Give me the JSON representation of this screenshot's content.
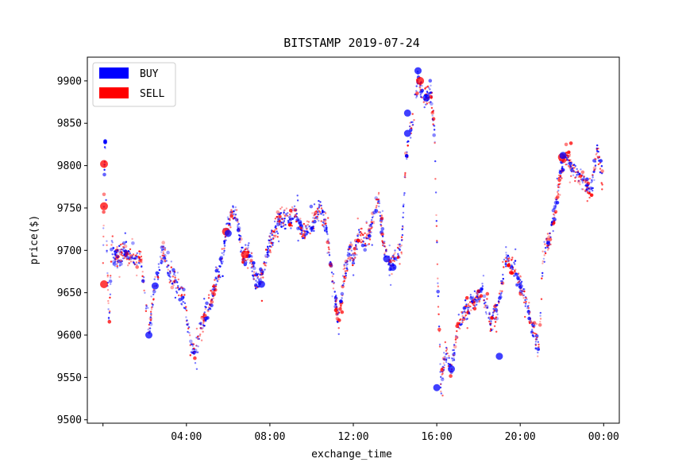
{
  "chart_data": {
    "type": "scatter",
    "title": "BITSTAMP 2019-07-24",
    "xlabel": "exchange_time",
    "ylabel": "price($)",
    "xlim": [
      -0.75,
      24.75
    ],
    "ylim": [
      9496,
      9928
    ],
    "x_ticks": [
      {
        "x": 0,
        "label": ""
      },
      {
        "x": 4,
        "label": "04:00"
      },
      {
        "x": 8,
        "label": "08:00"
      },
      {
        "x": 12,
        "label": "12:00"
      },
      {
        "x": 16,
        "label": "16:00"
      },
      {
        "x": 20,
        "label": "20:00"
      },
      {
        "x": 24,
        "label": "00:00"
      }
    ],
    "y_ticks": [
      9500,
      9550,
      9600,
      9650,
      9700,
      9750,
      9800,
      9850,
      9900
    ],
    "grid": false,
    "legend_position": "top-left",
    "series": [
      {
        "name": "BUY",
        "color": "#0000ff"
      },
      {
        "name": "SELL",
        "color": "#ff0000"
      }
    ],
    "price_path": [
      {
        "x": 0.0,
        "y": 9690
      },
      {
        "x": 0.05,
        "y": 9760
      },
      {
        "x": 0.1,
        "y": 9840
      },
      {
        "x": 0.2,
        "y": 9680
      },
      {
        "x": 0.3,
        "y": 9615
      },
      {
        "x": 0.4,
        "y": 9700
      },
      {
        "x": 0.6,
        "y": 9690
      },
      {
        "x": 1.0,
        "y": 9700
      },
      {
        "x": 1.5,
        "y": 9690
      },
      {
        "x": 1.8,
        "y": 9690
      },
      {
        "x": 2.0,
        "y": 9650
      },
      {
        "x": 2.2,
        "y": 9600
      },
      {
        "x": 2.5,
        "y": 9660
      },
      {
        "x": 2.9,
        "y": 9700
      },
      {
        "x": 3.2,
        "y": 9670
      },
      {
        "x": 3.6,
        "y": 9660
      },
      {
        "x": 3.9,
        "y": 9640
      },
      {
        "x": 4.2,
        "y": 9590
      },
      {
        "x": 4.4,
        "y": 9575
      },
      {
        "x": 4.7,
        "y": 9610
      },
      {
        "x": 5.0,
        "y": 9630
      },
      {
        "x": 5.4,
        "y": 9660
      },
      {
        "x": 5.7,
        "y": 9690
      },
      {
        "x": 5.9,
        "y": 9720
      },
      {
        "x": 6.1,
        "y": 9740
      },
      {
        "x": 6.4,
        "y": 9740
      },
      {
        "x": 6.7,
        "y": 9690
      },
      {
        "x": 7.0,
        "y": 9700
      },
      {
        "x": 7.3,
        "y": 9665
      },
      {
        "x": 7.6,
        "y": 9665
      },
      {
        "x": 7.9,
        "y": 9700
      },
      {
        "x": 8.2,
        "y": 9720
      },
      {
        "x": 8.5,
        "y": 9740
      },
      {
        "x": 8.9,
        "y": 9735
      },
      {
        "x": 9.2,
        "y": 9745
      },
      {
        "x": 9.6,
        "y": 9720
      },
      {
        "x": 10.0,
        "y": 9730
      },
      {
        "x": 10.4,
        "y": 9750
      },
      {
        "x": 10.7,
        "y": 9730
      },
      {
        "x": 11.0,
        "y": 9670
      },
      {
        "x": 11.3,
        "y": 9610
      },
      {
        "x": 11.5,
        "y": 9660
      },
      {
        "x": 11.8,
        "y": 9700
      },
      {
        "x": 12.0,
        "y": 9690
      },
      {
        "x": 12.3,
        "y": 9720
      },
      {
        "x": 12.6,
        "y": 9710
      },
      {
        "x": 12.9,
        "y": 9730
      },
      {
        "x": 13.2,
        "y": 9760
      },
      {
        "x": 13.5,
        "y": 9700
      },
      {
        "x": 13.8,
        "y": 9680
      },
      {
        "x": 14.0,
        "y": 9690
      },
      {
        "x": 14.3,
        "y": 9700
      },
      {
        "x": 14.5,
        "y": 9800
      },
      {
        "x": 14.7,
        "y": 9840
      },
      {
        "x": 14.9,
        "y": 9860
      },
      {
        "x": 15.1,
        "y": 9905
      },
      {
        "x": 15.4,
        "y": 9880
      },
      {
        "x": 15.7,
        "y": 9890
      },
      {
        "x": 15.9,
        "y": 9840
      },
      {
        "x": 16.0,
        "y": 9720
      },
      {
        "x": 16.1,
        "y": 9620
      },
      {
        "x": 16.2,
        "y": 9540
      },
      {
        "x": 16.4,
        "y": 9580
      },
      {
        "x": 16.7,
        "y": 9560
      },
      {
        "x": 17.0,
        "y": 9610
      },
      {
        "x": 17.4,
        "y": 9630
      },
      {
        "x": 17.8,
        "y": 9640
      },
      {
        "x": 18.2,
        "y": 9650
      },
      {
        "x": 18.6,
        "y": 9610
      },
      {
        "x": 19.0,
        "y": 9640
      },
      {
        "x": 19.3,
        "y": 9690
      },
      {
        "x": 19.7,
        "y": 9680
      },
      {
        "x": 20.0,
        "y": 9660
      },
      {
        "x": 20.3,
        "y": 9640
      },
      {
        "x": 20.6,
        "y": 9610
      },
      {
        "x": 20.9,
        "y": 9580
      },
      {
        "x": 21.1,
        "y": 9700
      },
      {
        "x": 21.4,
        "y": 9710
      },
      {
        "x": 21.7,
        "y": 9750
      },
      {
        "x": 22.0,
        "y": 9800
      },
      {
        "x": 22.3,
        "y": 9810
      },
      {
        "x": 22.6,
        "y": 9790
      },
      {
        "x": 23.0,
        "y": 9780
      },
      {
        "x": 23.4,
        "y": 9770
      },
      {
        "x": 23.7,
        "y": 9820
      },
      {
        "x": 23.95,
        "y": 9780
      }
    ],
    "highlighted_trades": [
      {
        "side": "SELL",
        "x": 0.05,
        "y": 9802
      },
      {
        "side": "SELL",
        "x": 0.05,
        "y": 9752
      },
      {
        "side": "SELL",
        "x": 0.05,
        "y": 9660
      },
      {
        "side": "BUY",
        "x": 2.2,
        "y": 9600
      },
      {
        "side": "BUY",
        "x": 2.5,
        "y": 9658
      },
      {
        "side": "SELL",
        "x": 5.9,
        "y": 9722
      },
      {
        "side": "BUY",
        "x": 6.0,
        "y": 9720
      },
      {
        "side": "SELL",
        "x": 6.8,
        "y": 9695
      },
      {
        "side": "BUY",
        "x": 7.6,
        "y": 9660
      },
      {
        "side": "BUY",
        "x": 13.6,
        "y": 9690
      },
      {
        "side": "BUY",
        "x": 13.9,
        "y": 9680
      },
      {
        "side": "BUY",
        "x": 14.6,
        "y": 9838
      },
      {
        "side": "BUY",
        "x": 14.6,
        "y": 9862
      },
      {
        "side": "BUY",
        "x": 15.1,
        "y": 9912
      },
      {
        "side": "SELL",
        "x": 15.2,
        "y": 9900
      },
      {
        "side": "BUY",
        "x": 15.5,
        "y": 9880
      },
      {
        "side": "BUY",
        "x": 16.0,
        "y": 9538
      },
      {
        "side": "BUY",
        "x": 16.7,
        "y": 9560
      },
      {
        "side": "BUY",
        "x": 19.0,
        "y": 9575
      },
      {
        "side": "SELL",
        "x": 22.0,
        "y": 9810
      },
      {
        "side": "BUY",
        "x": 22.05,
        "y": 9812
      }
    ]
  }
}
